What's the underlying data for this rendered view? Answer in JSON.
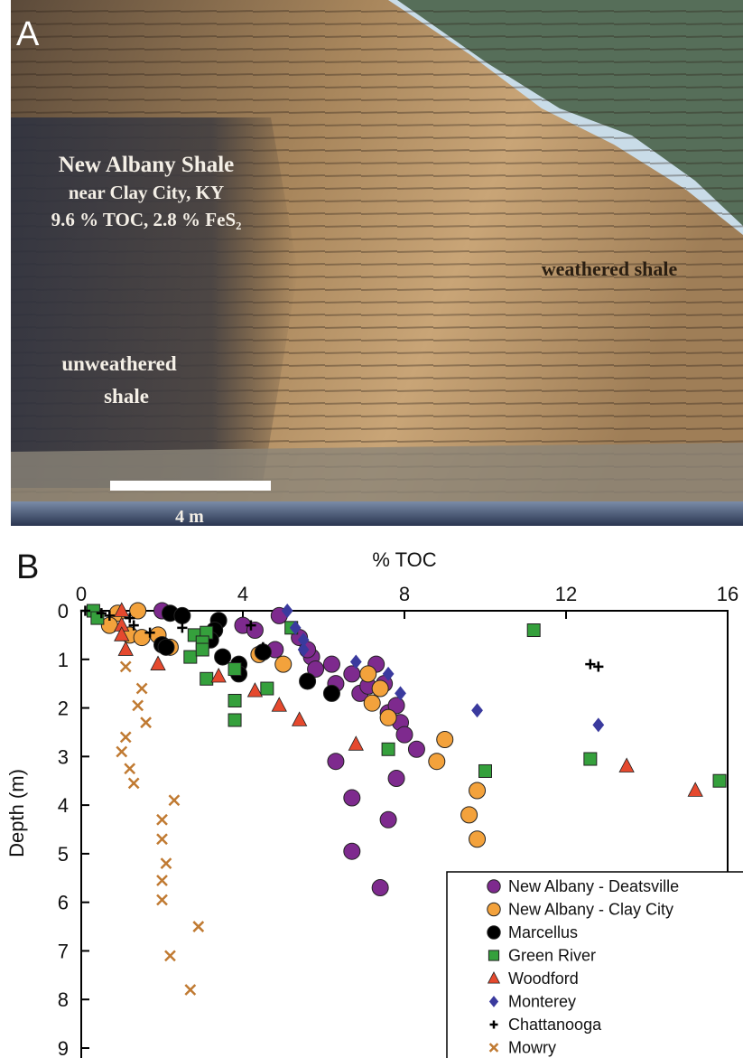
{
  "panel_a": {
    "label": "A",
    "title": "New Albany Shale",
    "location": "near Clay City, KY",
    "composition": "9.6 % TOC, 2.8 % FeS₂",
    "weathered": "weathered shale",
    "unweathered": [
      "unweathered",
      "shale"
    ],
    "scale_bar": "4 m"
  },
  "chart_data": {
    "type": "scatter",
    "panel_label": "B",
    "x_label": "% TOC",
    "y_label": "Depth (m)",
    "xlim": [
      0,
      16
    ],
    "xticks": [
      0,
      4,
      8,
      12,
      16
    ],
    "ylim": [
      0,
      9
    ],
    "yticks": [
      0,
      1,
      2,
      3,
      4,
      5,
      6,
      7,
      8,
      9
    ],
    "y_inverted": true,
    "x_axis_position": "top",
    "legend": "bottom-right",
    "series": [
      {
        "name": "New Albany - Deatsville",
        "color": "#7e2a8e",
        "marker": "circle",
        "x": [
          2.0,
          4.0,
          4.3,
          4.8,
          4.9,
          5.4,
          5.7,
          5.8,
          5.6,
          6.3,
          6.2,
          6.7,
          6.9,
          7.1,
          7.3,
          7.5,
          7.6,
          7.8,
          7.9,
          8.0,
          8.3,
          6.3,
          7.8,
          6.7,
          7.6,
          6.7,
          7.4
        ],
        "values": [
          0.0,
          0.3,
          0.4,
          0.8,
          0.1,
          0.55,
          0.95,
          1.2,
          0.8,
          1.5,
          1.1,
          1.3,
          1.7,
          1.55,
          1.1,
          1.5,
          2.1,
          1.95,
          2.3,
          2.55,
          2.85,
          3.1,
          3.45,
          3.85,
          4.3,
          4.95,
          5.7
        ]
      },
      {
        "name": "New Albany - Clay City",
        "color": "#f3a23c",
        "marker": "circle",
        "x": [
          0.9,
          1.4,
          0.7,
          1.2,
          1.5,
          1.9,
          2.2,
          4.4,
          5.0,
          7.1,
          7.4,
          7.2,
          7.6,
          9.0,
          8.8,
          9.8,
          9.6,
          9.8
        ],
        "values": [
          0.05,
          0.0,
          0.3,
          0.5,
          0.55,
          0.5,
          0.75,
          0.9,
          1.1,
          1.3,
          1.6,
          1.9,
          2.2,
          2.65,
          3.1,
          3.7,
          4.2,
          4.7
        ]
      },
      {
        "name": "Marcellus",
        "color": "#000000",
        "marker": "circle",
        "x": [
          2.2,
          2.5,
          3.4,
          3.3,
          3.2,
          2.0,
          3.5,
          3.9,
          3.9,
          4.5,
          5.6,
          6.2,
          2.1
        ],
        "values": [
          0.05,
          0.1,
          0.2,
          0.4,
          0.6,
          0.7,
          0.95,
          1.1,
          1.3,
          0.85,
          1.45,
          1.7,
          0.75
        ]
      },
      {
        "name": "Green River",
        "color": "#35a03c",
        "marker": "square",
        "x": [
          0.3,
          0.4,
          2.8,
          3.1,
          3.0,
          5.2,
          2.7,
          3.0,
          3.1,
          3.8,
          3.8,
          4.6,
          3.8,
          7.6,
          10.0,
          11.2,
          12.6,
          15.8
        ],
        "values": [
          0.0,
          0.15,
          0.5,
          0.45,
          0.65,
          0.35,
          0.95,
          0.8,
          1.4,
          1.2,
          1.85,
          1.6,
          2.25,
          2.85,
          3.3,
          0.4,
          3.05,
          3.5
        ]
      },
      {
        "name": "Woodford",
        "color": "#e5492e",
        "marker": "triangle",
        "x": [
          1.0,
          1.0,
          1.0,
          1.1,
          1.9,
          3.4,
          4.3,
          4.9,
          5.4,
          6.8,
          13.5,
          15.2
        ],
        "values": [
          0.0,
          0.3,
          0.5,
          0.8,
          1.1,
          1.35,
          1.65,
          1.95,
          2.25,
          2.75,
          3.2,
          3.7
        ]
      },
      {
        "name": "Monterey",
        "color": "#3a3a9e",
        "marker": "diamond",
        "x": [
          5.1,
          5.3,
          5.5,
          5.5,
          6.8,
          7.6,
          7.9,
          9.8,
          12.8
        ],
        "values": [
          0.0,
          0.35,
          0.6,
          0.8,
          1.05,
          1.3,
          1.7,
          2.05,
          2.35
        ]
      },
      {
        "name": "Chattanooga",
        "color": "#000000",
        "marker": "plus",
        "x": [
          0.1,
          0.5,
          0.7,
          1.2,
          1.3,
          1.7,
          2.5,
          4.2,
          4.5,
          12.6,
          12.8
        ],
        "values": [
          0.0,
          0.05,
          0.1,
          0.15,
          0.3,
          0.45,
          0.35,
          0.3,
          0.75,
          1.1,
          1.15
        ]
      },
      {
        "name": "Mowry",
        "color": "#c07a32",
        "marker": "cross",
        "x": [
          1.1,
          1.5,
          1.4,
          1.6,
          1.1,
          1.0,
          1.2,
          1.3,
          2.3,
          2.0,
          2.0,
          2.1,
          2.0,
          2.0,
          2.9,
          2.2,
          2.7
        ],
        "values": [
          1.15,
          1.6,
          1.95,
          2.3,
          2.6,
          2.9,
          3.25,
          3.55,
          3.9,
          4.3,
          4.7,
          5.2,
          5.55,
          5.95,
          6.5,
          7.1,
          7.8
        ]
      }
    ]
  }
}
